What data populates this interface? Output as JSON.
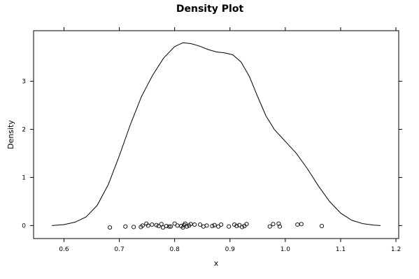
{
  "chart_data": {
    "type": "line",
    "title": "Density Plot",
    "xlabel": "x",
    "ylabel": "Density",
    "xlim": [
      0.545,
      1.205
    ],
    "ylim": [
      -0.27,
      4.05
    ],
    "x_ticks": [
      0.6,
      0.7,
      0.8,
      0.9,
      1.0,
      1.1,
      1.2
    ],
    "x_tick_labels": [
      "0.6",
      "0.7",
      "0.8",
      "0.9",
      "1.0",
      "1.1",
      "1.2"
    ],
    "y_ticks": [
      0,
      1,
      2,
      3
    ],
    "y_tick_labels": [
      "0",
      "1",
      "2",
      "3"
    ],
    "grid": false,
    "series": [
      {
        "kind": "density-curve",
        "points": [
          [
            0.578,
            0.0
          ],
          [
            0.6,
            0.02
          ],
          [
            0.62,
            0.07
          ],
          [
            0.64,
            0.18
          ],
          [
            0.66,
            0.42
          ],
          [
            0.68,
            0.85
          ],
          [
            0.7,
            1.45
          ],
          [
            0.72,
            2.1
          ],
          [
            0.74,
            2.68
          ],
          [
            0.76,
            3.12
          ],
          [
            0.78,
            3.48
          ],
          [
            0.8,
            3.72
          ],
          [
            0.815,
            3.8
          ],
          [
            0.83,
            3.78
          ],
          [
            0.845,
            3.73
          ],
          [
            0.86,
            3.66
          ],
          [
            0.875,
            3.61
          ],
          [
            0.89,
            3.59
          ],
          [
            0.905,
            3.55
          ],
          [
            0.92,
            3.4
          ],
          [
            0.935,
            3.1
          ],
          [
            0.95,
            2.68
          ],
          [
            0.965,
            2.28
          ],
          [
            0.98,
            2.0
          ],
          [
            1.0,
            1.75
          ],
          [
            1.02,
            1.5
          ],
          [
            1.04,
            1.18
          ],
          [
            1.06,
            0.82
          ],
          [
            1.08,
            0.5
          ],
          [
            1.1,
            0.26
          ],
          [
            1.12,
            0.11
          ],
          [
            1.14,
            0.04
          ],
          [
            1.16,
            0.01
          ],
          [
            1.172,
            0.0
          ]
        ]
      },
      {
        "kind": "jittered-points",
        "points": [
          [
            0.683,
            -0.04
          ],
          [
            0.711,
            -0.02
          ],
          [
            0.726,
            -0.03
          ],
          [
            0.739,
            -0.03
          ],
          [
            0.742,
            0.0
          ],
          [
            0.749,
            0.04
          ],
          [
            0.752,
            0.0
          ],
          [
            0.759,
            0.02
          ],
          [
            0.767,
            0.01
          ],
          [
            0.771,
            -0.01
          ],
          [
            0.776,
            0.03
          ],
          [
            0.779,
            -0.04
          ],
          [
            0.785,
            -0.01
          ],
          [
            0.79,
            -0.02
          ],
          [
            0.793,
            -0.02
          ],
          [
            0.8,
            0.04
          ],
          [
            0.805,
            0.0
          ],
          [
            0.812,
            -0.01
          ],
          [
            0.815,
            -0.04
          ],
          [
            0.817,
            0.01
          ],
          [
            0.819,
            0.04
          ],
          [
            0.822,
            -0.02
          ],
          [
            0.826,
            0.0
          ],
          [
            0.829,
            0.03
          ],
          [
            0.836,
            0.02
          ],
          [
            0.846,
            0.02
          ],
          [
            0.852,
            -0.02
          ],
          [
            0.858,
            0.0
          ],
          [
            0.868,
            -0.01
          ],
          [
            0.872,
            0.01
          ],
          [
            0.879,
            -0.02
          ],
          [
            0.884,
            0.02
          ],
          [
            0.898,
            -0.02
          ],
          [
            0.908,
            0.02
          ],
          [
            0.912,
            -0.01
          ],
          [
            0.917,
            0.01
          ],
          [
            0.922,
            -0.03
          ],
          [
            0.926,
            -0.01
          ],
          [
            0.93,
            0.03
          ],
          [
            0.972,
            -0.02
          ],
          [
            0.978,
            0.03
          ],
          [
            0.988,
            0.04
          ],
          [
            0.99,
            -0.02
          ],
          [
            1.022,
            0.02
          ],
          [
            1.029,
            0.03
          ],
          [
            1.066,
            -0.01
          ]
        ]
      }
    ]
  }
}
